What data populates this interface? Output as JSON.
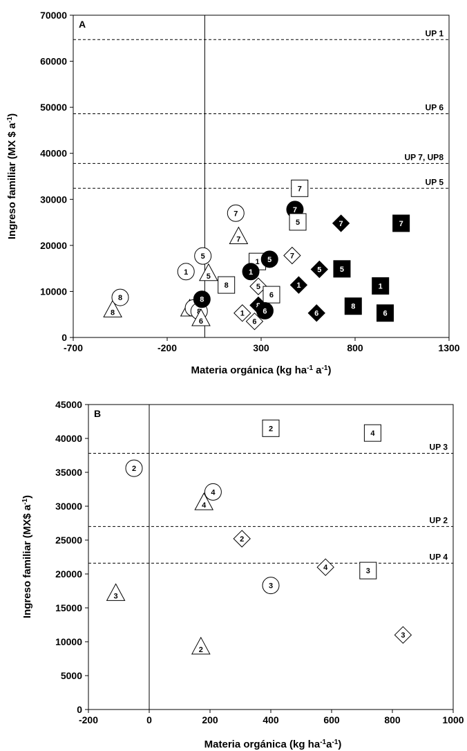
{
  "chart_data": [
    {
      "type": "scatter",
      "panel_label": "A",
      "xlabel": "Materia orgánica (kg ha-1 a-1)",
      "ylabel": "Ingreso familiar (MX $ a-1)",
      "xlim": [
        -700,
        1300
      ],
      "ylim": [
        0,
        70000
      ],
      "xticks": [
        -700,
        -200,
        300,
        800,
        1300
      ],
      "yticks": [
        0,
        10000,
        20000,
        30000,
        40000,
        50000,
        60000,
        70000
      ],
      "vline_x": 0,
      "reference_lines": [
        {
          "label": "UP 1",
          "y": 64700
        },
        {
          "label": "UP 6",
          "y": 48600
        },
        {
          "label": "UP 7, UP8",
          "y": 37800
        },
        {
          "label": "UP 5",
          "y": 32400
        }
      ],
      "points": [
        {
          "marker": "triangle-open",
          "label": "8",
          "x": -490,
          "y": 5800
        },
        {
          "marker": "circle-open",
          "label": "8",
          "x": -450,
          "y": 8700
        },
        {
          "marker": "circle-open",
          "label": "1",
          "x": -100,
          "y": 14300
        },
        {
          "marker": "circle-open",
          "label": "5",
          "x": -10,
          "y": 17700
        },
        {
          "marker": "triangle-open",
          "label": "5",
          "x": 20,
          "y": 13700
        },
        {
          "marker": "square-open",
          "label": "8",
          "x": 115,
          "y": 11400
        },
        {
          "marker": "triangle-open",
          "label": "1",
          "x": -80,
          "y": 6000
        },
        {
          "marker": "circle-open",
          "label": "6",
          "x": -60,
          "y": 6400
        },
        {
          "marker": "circle-open",
          "label": "8",
          "x": -30,
          "y": 5700
        },
        {
          "marker": "triangle-open",
          "label": "6",
          "x": -20,
          "y": 3900
        },
        {
          "marker": "circle-filled",
          "label": "8",
          "x": -15,
          "y": 8300
        },
        {
          "marker": "circle-open",
          "label": "7",
          "x": 165,
          "y": 27000
        },
        {
          "marker": "triangle-open",
          "label": "7",
          "x": 180,
          "y": 21700
        },
        {
          "marker": "square-open",
          "label": "1",
          "x": 280,
          "y": 16500
        },
        {
          "marker": "circle-filled",
          "label": "1",
          "x": 245,
          "y": 14300
        },
        {
          "marker": "circle-filled",
          "label": "5",
          "x": 345,
          "y": 17000
        },
        {
          "marker": "diamond-open",
          "label": "5",
          "x": 285,
          "y": 11100
        },
        {
          "marker": "square-open",
          "label": "6",
          "x": 355,
          "y": 9300
        },
        {
          "marker": "diamond-open",
          "label": "1",
          "x": 200,
          "y": 5300
        },
        {
          "marker": "diamond-filled",
          "label": "8",
          "x": 285,
          "y": 7000
        },
        {
          "marker": "circle-filled",
          "label": "6",
          "x": 320,
          "y": 5800
        },
        {
          "marker": "diamond-open",
          "label": "6",
          "x": 265,
          "y": 3500
        },
        {
          "marker": "diamond-open",
          "label": "7",
          "x": 465,
          "y": 17800
        },
        {
          "marker": "circle-filled",
          "label": "7",
          "x": 480,
          "y": 27800
        },
        {
          "marker": "square-open",
          "label": "7",
          "x": 505,
          "y": 32400
        },
        {
          "marker": "square-open",
          "label": "5",
          "x": 495,
          "y": 25100
        },
        {
          "marker": "diamond-filled",
          "label": "1",
          "x": 500,
          "y": 11400
        },
        {
          "marker": "diamond-filled",
          "label": "5",
          "x": 610,
          "y": 14800
        },
        {
          "marker": "diamond-filled",
          "label": "6",
          "x": 595,
          "y": 5300
        },
        {
          "marker": "diamond-filled",
          "label": "7",
          "x": 725,
          "y": 24800
        },
        {
          "marker": "square-filled",
          "label": "5",
          "x": 730,
          "y": 14900
        },
        {
          "marker": "square-filled",
          "label": "8",
          "x": 790,
          "y": 6800
        },
        {
          "marker": "square-filled",
          "label": "1",
          "x": 935,
          "y": 11200
        },
        {
          "marker": "square-filled",
          "label": "6",
          "x": 960,
          "y": 5300
        },
        {
          "marker": "square-filled",
          "label": "7",
          "x": 1045,
          "y": 24800
        }
      ]
    },
    {
      "type": "scatter",
      "panel_label": "B",
      "xlabel": "Materia orgánica (kg ha-1a-1)",
      "ylabel": "Ingreso familiar (MX$ a-1)",
      "xlim": [
        -200,
        1000
      ],
      "ylim": [
        0,
        45000
      ],
      "xticks": [
        -200,
        0,
        200,
        400,
        600,
        800,
        1000
      ],
      "yticks": [
        0,
        5000,
        10000,
        15000,
        20000,
        25000,
        30000,
        35000,
        40000,
        45000
      ],
      "vline_x": 0,
      "reference_lines": [
        {
          "label": "UP 3",
          "y": 37800
        },
        {
          "label": "UP 2",
          "y": 27000
        },
        {
          "label": "UP 4",
          "y": 21600
        }
      ],
      "points": [
        {
          "marker": "circle-open",
          "label": "2",
          "x": -50,
          "y": 35600
        },
        {
          "marker": "triangle-open",
          "label": "3",
          "x": -110,
          "y": 17000
        },
        {
          "marker": "circle-open",
          "label": "4",
          "x": 210,
          "y": 32100
        },
        {
          "marker": "triangle-open",
          "label": "4",
          "x": 180,
          "y": 30400
        },
        {
          "marker": "diamond-open",
          "label": "2",
          "x": 305,
          "y": 25200
        },
        {
          "marker": "triangle-open",
          "label": "2",
          "x": 170,
          "y": 9100
        },
        {
          "marker": "square-open",
          "label": "2",
          "x": 400,
          "y": 41500
        },
        {
          "marker": "circle-open",
          "label": "3",
          "x": 400,
          "y": 18300
        },
        {
          "marker": "square-open",
          "label": "4",
          "x": 735,
          "y": 40800
        },
        {
          "marker": "diamond-open",
          "label": "4",
          "x": 580,
          "y": 21000
        },
        {
          "marker": "square-open",
          "label": "3",
          "x": 720,
          "y": 20500
        },
        {
          "marker": "diamond-open",
          "label": "3",
          "x": 835,
          "y": 11000
        }
      ]
    }
  ],
  "panels": [
    {
      "panel_label": "A",
      "xlabel": {
        "main": "Materia orgánica (kg ha",
        "sup1": "-1",
        "mid": " a",
        "sup2": "-1",
        "end": ")"
      },
      "ylabel": {
        "main": "Ingreso familiar (MX $ a",
        "sup": "-1",
        "end": ")"
      }
    },
    {
      "panel_label": "B",
      "xlabel": {
        "main": "Materia orgánica (kg ha",
        "sup1": "-1",
        "mid": "a",
        "sup2": "-1",
        "end": ")"
      },
      "ylabel": {
        "main": "Ingreso familiar (MX$ a",
        "sup": "-1",
        "end": ")"
      }
    }
  ]
}
